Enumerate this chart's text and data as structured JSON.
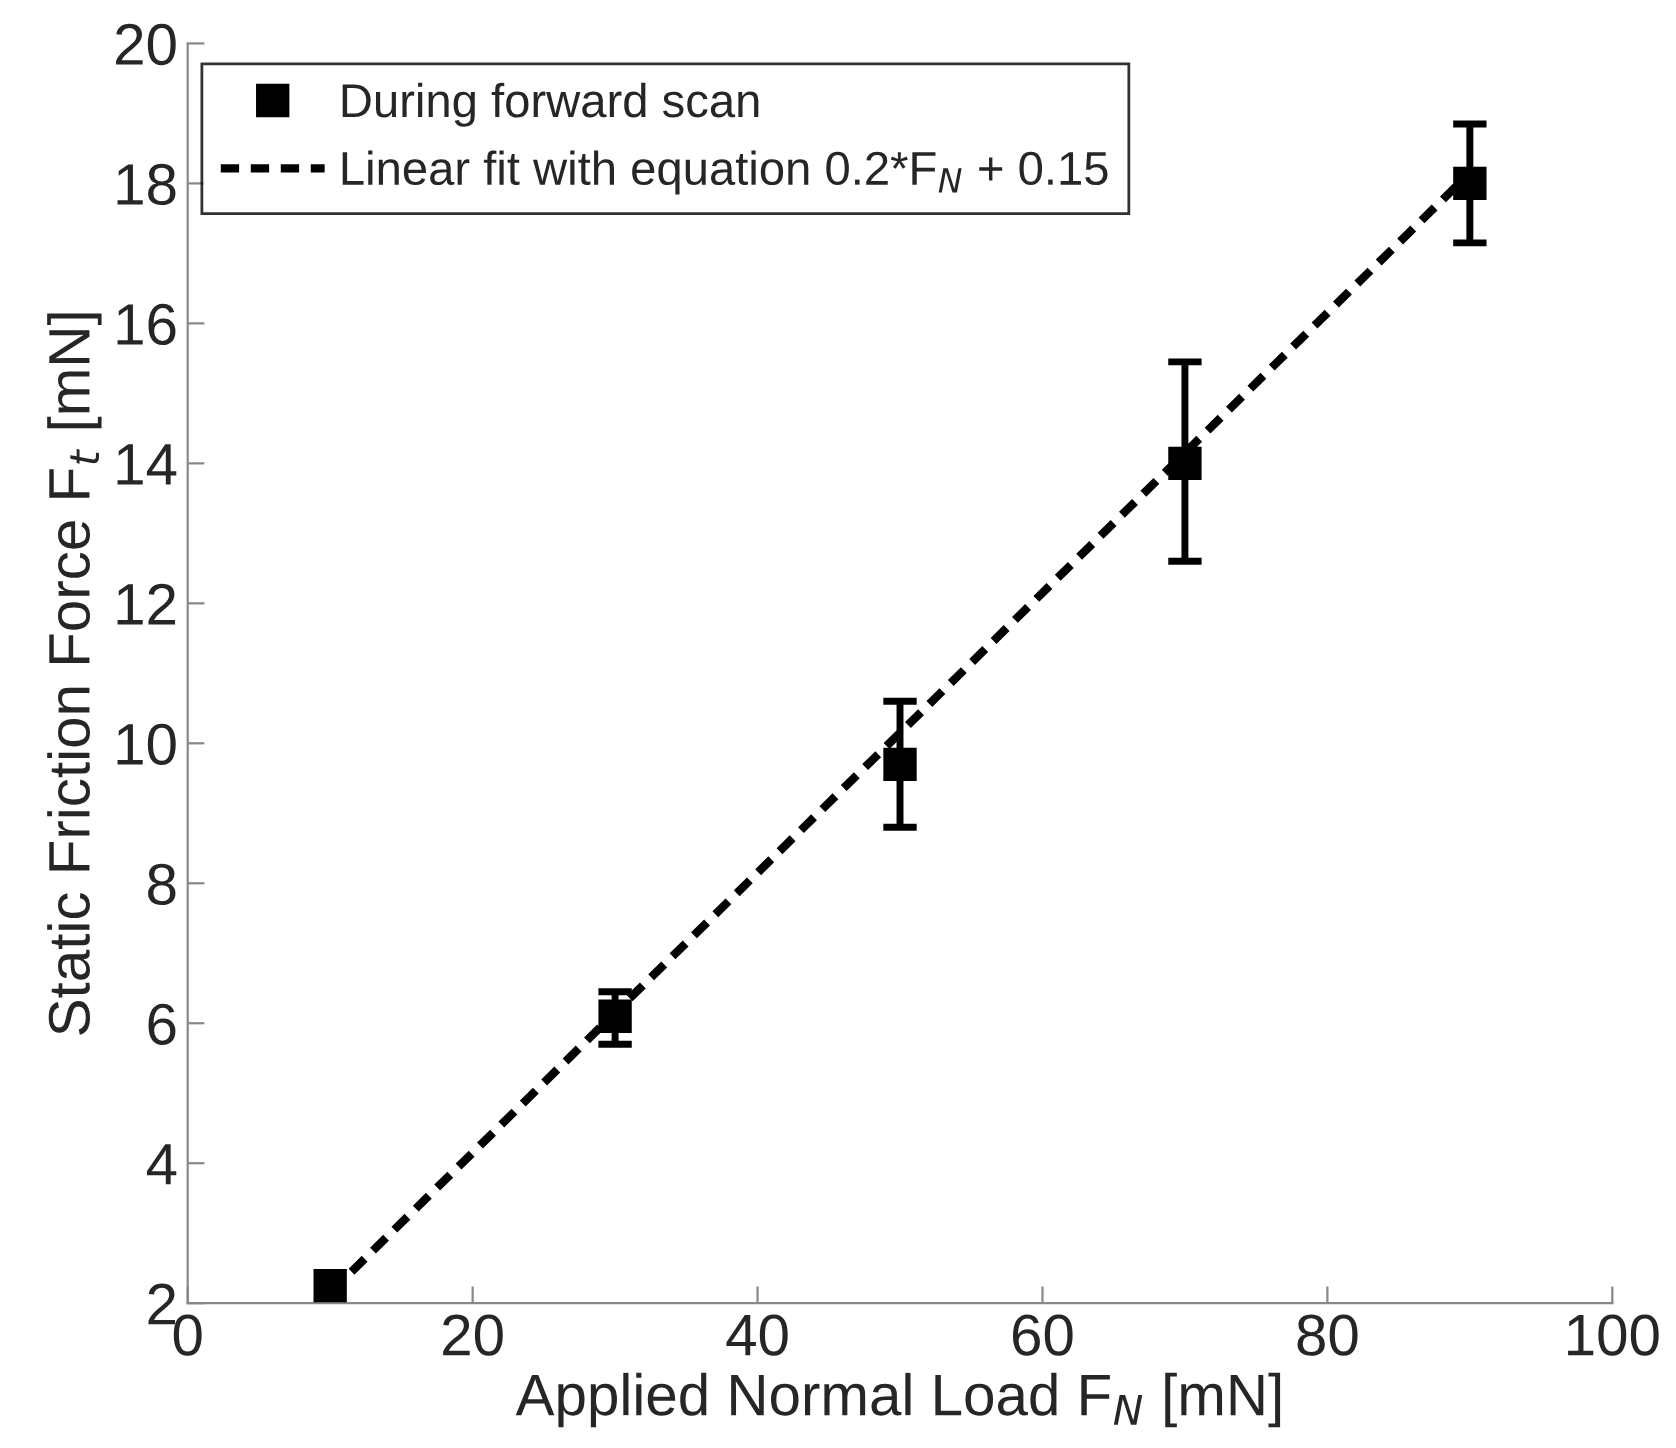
{
  "chart_data": {
    "type": "scatter",
    "xlabel": "Applied Normal Load F$_{N}$ [mN]",
    "ylabel": "Static Friction Force F$_{t}$ [mN]",
    "xlim": [
      0,
      100
    ],
    "xticks": [
      0,
      20,
      40,
      60,
      80,
      100
    ],
    "ylim": [
      2,
      20
    ],
    "yticks": [
      2,
      4,
      6,
      8,
      10,
      12,
      14,
      16,
      18,
      20
    ],
    "grid": false,
    "legend": "top left",
    "series": [
      {
        "name": "During forward scan",
        "marker": "square",
        "color": "#000000",
        "x": [
          10,
          30,
          50,
          70,
          90
        ],
        "values": [
          2.25,
          6.1,
          9.7,
          14.0,
          18.0
        ],
        "errors": [
          null,
          [
            5.7,
            6.45
          ],
          [
            8.8,
            10.6
          ],
          [
            12.6,
            15.45
          ],
          [
            17.15,
            18.85
          ]
        ]
      },
      {
        "name": "Linear fit with equation 0.2*F$_{N}$ + 0.15",
        "type": "line",
        "line_style": "dashed",
        "color": "#000000",
        "x": [
          10,
          90
        ],
        "values": [
          2.15,
          18.15
        ]
      }
    ]
  }
}
